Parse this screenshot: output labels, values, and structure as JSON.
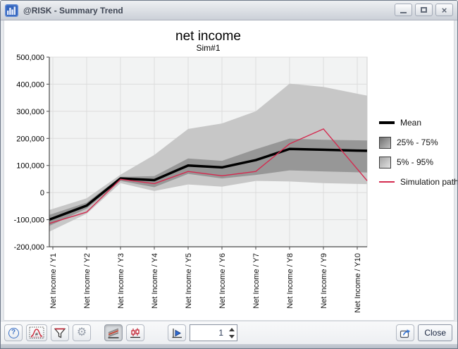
{
  "window": {
    "title": "@RISK - Summary Trend",
    "controls": {
      "close_glyph": "×"
    }
  },
  "chart_data": {
    "type": "line",
    "title": "net income",
    "subtitle": "Sim#1",
    "categories": [
      "Net Income / Y1",
      "Net Income / Y2",
      "Net Income / Y3",
      "Net Income / Y4",
      "Net Income / Y5",
      "Net Income / Y6",
      "Net Income / Y7",
      "Net Income / Y8",
      "Net Income / Y9",
      "Net Income / Y10"
    ],
    "ylim": [
      -200000,
      500000
    ],
    "ytick_step": 100000,
    "ytick_labels": [
      "500,000",
      "400,000",
      "300,000",
      "200,000",
      "100,000",
      "0",
      "-100,000",
      "-200,000"
    ],
    "grid": true,
    "legend_position": "right",
    "series": [
      {
        "name": "Mean",
        "type": "line",
        "color": "#000000",
        "width": 3.5,
        "values": [
          -95000,
          -48000,
          52000,
          46000,
          100000,
          93000,
          120000,
          161000,
          158000,
          155000
        ]
      },
      {
        "name": "25% - 75%",
        "type": "band",
        "color": "#979797",
        "low": [
          -117000,
          -59000,
          43000,
          20000,
          69000,
          52000,
          65000,
          82000,
          78000,
          75000
        ],
        "high": [
          -78000,
          -37000,
          58000,
          61000,
          126000,
          117000,
          160000,
          199000,
          195000,
          193000
        ]
      },
      {
        "name": "5% - 95%",
        "type": "band",
        "color": "#c7c7c7",
        "low": [
          -138000,
          -78000,
          35000,
          6000,
          30000,
          22000,
          43000,
          41000,
          35000,
          32000
        ],
        "high": [
          -60000,
          -21000,
          66000,
          139000,
          235000,
          255000,
          300000,
          402000,
          390000,
          365000
        ]
      },
      {
        "name": "Simulation path",
        "type": "line",
        "color": "#d42b50",
        "width": 1.4,
        "values": [
          -110000,
          -72000,
          49000,
          33000,
          78000,
          62000,
          78000,
          180000,
          235000,
          87000
        ]
      }
    ]
  },
  "legend": {
    "items": [
      {
        "label": "Mean",
        "swatch": "thick-black-line"
      },
      {
        "label": "25% - 75%",
        "swatch": "dark-gray-box"
      },
      {
        "label": "5% - 95%",
        "swatch": "light-gray-box"
      },
      {
        "label": "Simulation path",
        "swatch": "thin-red-line"
      }
    ]
  },
  "toolbar": {
    "help_glyph": "?",
    "gear_glyph": "⚙",
    "simulation_number": "1",
    "close_label": "Close"
  }
}
